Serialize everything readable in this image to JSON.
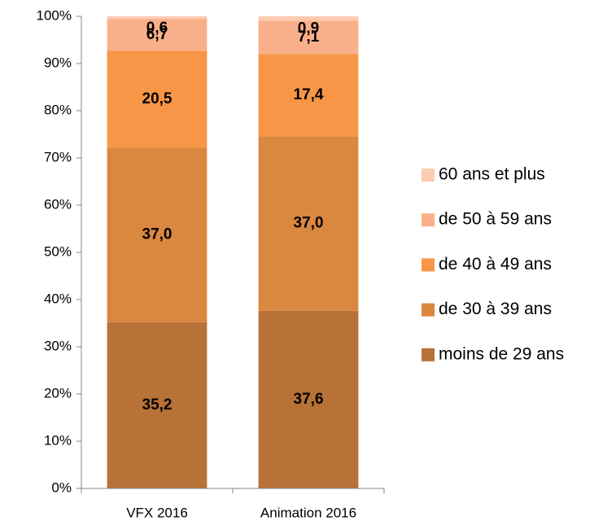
{
  "chart_data": {
    "type": "stacked_bar",
    "categories": [
      "VFX 2016",
      "Animation 2016"
    ],
    "series": [
      {
        "name": "moins de 29 ans",
        "color": "#b87136",
        "values": [
          35.2,
          37.6
        ],
        "value_labels": [
          "35,2",
          "37,6"
        ]
      },
      {
        "name": "de 30 à 39 ans",
        "color": "#da8740",
        "values": [
          37.0,
          37.0
        ],
        "value_labels": [
          "37,0",
          "37,0"
        ]
      },
      {
        "name": "de 40 à 49 ans",
        "color": "#f79646",
        "values": [
          20.5,
          17.4
        ],
        "value_labels": [
          "20,5",
          "17,4"
        ]
      },
      {
        "name": "de 50 à 59 ans",
        "color": "#f9b08a",
        "values": [
          6.7,
          7.1
        ],
        "value_labels": [
          "6,7",
          "7,1"
        ]
      },
      {
        "name": "60 ans et plus",
        "color": "#fccbb0",
        "values": [
          0.6,
          0.9
        ],
        "value_labels": [
          "0,6",
          "0,9"
        ]
      }
    ],
    "ylim": [
      0,
      100
    ],
    "yticks": [
      {
        "value": 0,
        "label": "0%"
      },
      {
        "value": 10,
        "label": "10%"
      },
      {
        "value": 20,
        "label": "20%"
      },
      {
        "value": 30,
        "label": "30%"
      },
      {
        "value": 40,
        "label": "40%"
      },
      {
        "value": 50,
        "label": "50%"
      },
      {
        "value": 60,
        "label": "60%"
      },
      {
        "value": 70,
        "label": "70%"
      },
      {
        "value": 80,
        "label": "80%"
      },
      {
        "value": 90,
        "label": "90%"
      },
      {
        "value": 100,
        "label": "100%"
      }
    ],
    "legend": "right"
  }
}
